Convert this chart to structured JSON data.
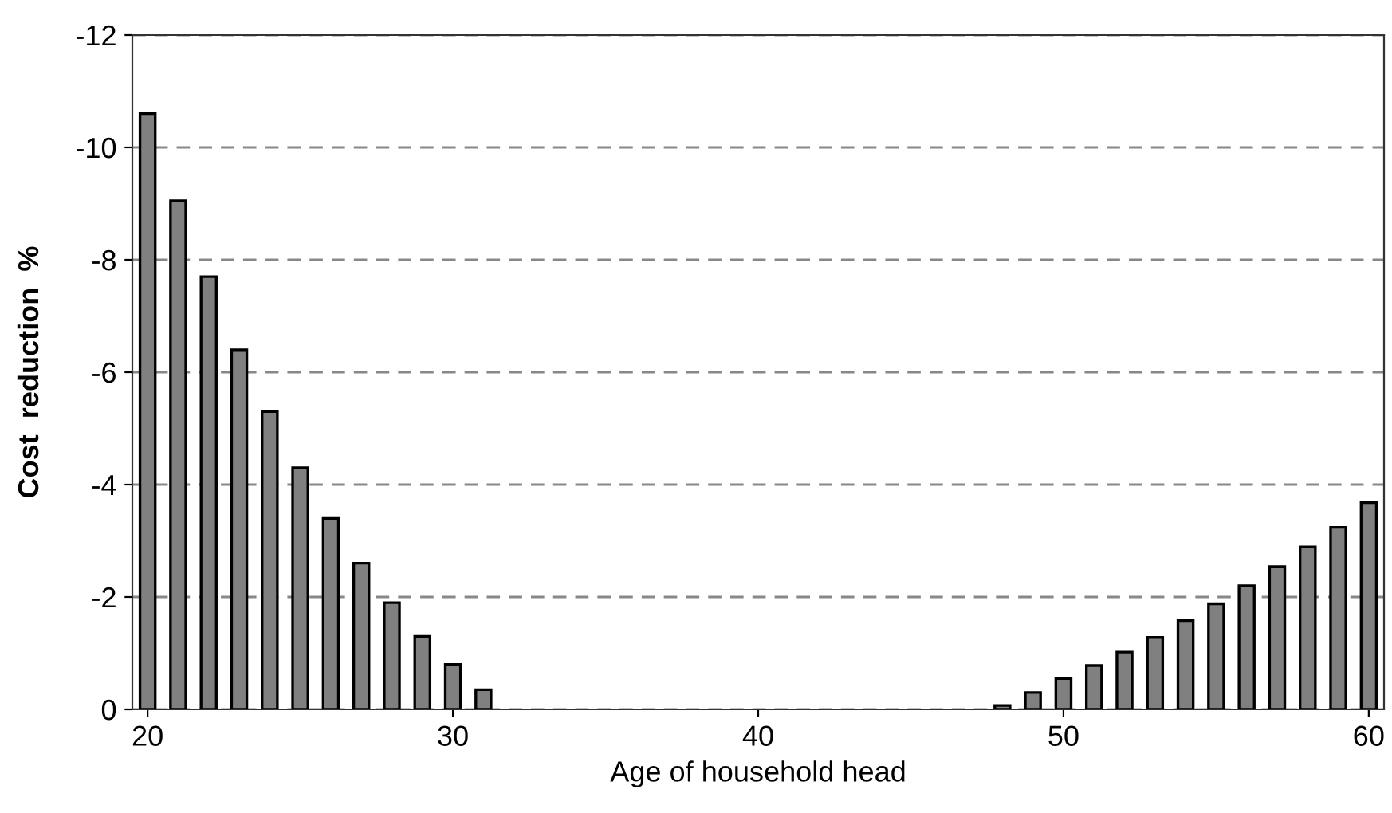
{
  "chart_data": {
    "type": "bar",
    "xlabel": "Age of household head",
    "ylabel": "Cost  reduction  %",
    "x": [
      20,
      21,
      22,
      23,
      24,
      25,
      26,
      27,
      28,
      29,
      30,
      31,
      32,
      33,
      34,
      35,
      36,
      37,
      38,
      39,
      40,
      41,
      42,
      43,
      44,
      45,
      46,
      47,
      48,
      49,
      50,
      51,
      52,
      53,
      54,
      55,
      56,
      57,
      58,
      59,
      60
    ],
    "values": [
      -10.6,
      -9.05,
      -7.7,
      -6.4,
      -5.3,
      -4.3,
      -3.4,
      -2.6,
      -1.9,
      -1.3,
      -0.8,
      -0.35,
      null,
      null,
      null,
      null,
      null,
      null,
      null,
      null,
      null,
      null,
      null,
      null,
      null,
      null,
      null,
      null,
      -0.07,
      -0.3,
      -0.55,
      -0.78,
      -1.02,
      -1.28,
      -1.58,
      -1.88,
      -2.2,
      -2.54,
      -2.89,
      -3.24,
      -3.68
    ],
    "color": "#808080",
    "xlim": [
      19.5,
      60.5
    ],
    "xticks": [
      20,
      30,
      40,
      50,
      60
    ],
    "ylim": [
      0,
      -12
    ],
    "yticks": [
      0,
      -2,
      -4,
      -6,
      -8,
      -10,
      -12
    ],
    "grid": "y"
  }
}
